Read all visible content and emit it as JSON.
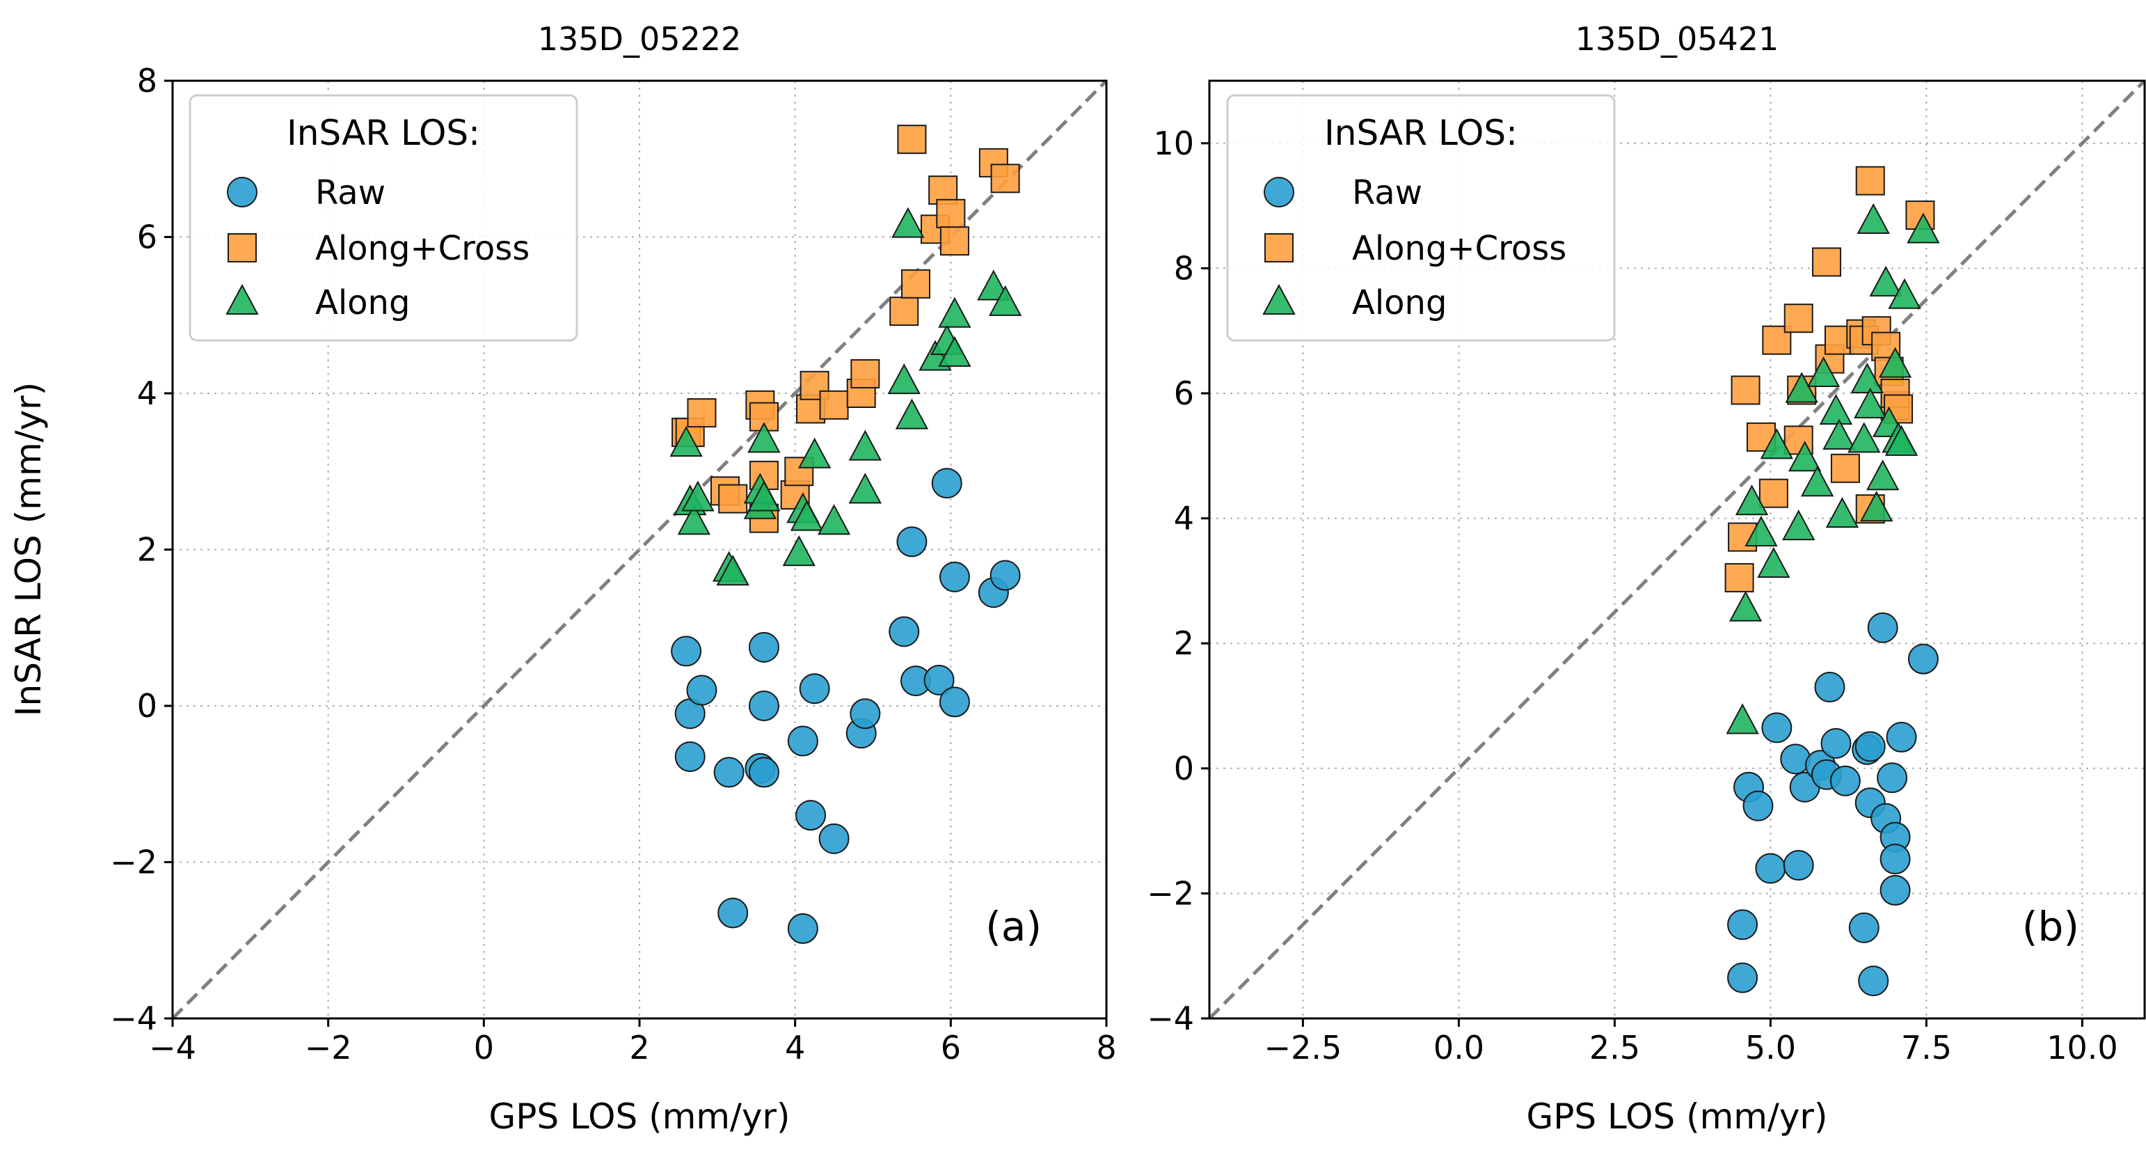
{
  "chart_data": [
    {
      "type": "scatter",
      "title": "135D_05222",
      "panel_label": "(a)",
      "xlabel": "GPS LOS (mm/yr)",
      "ylabel": "InSAR LOS (mm/yr)",
      "xlim": [
        -4,
        8
      ],
      "ylim": [
        -4,
        8
      ],
      "xticks": [
        -4,
        -2,
        0,
        2,
        4,
        6,
        8
      ],
      "yticks": [
        -4,
        -2,
        0,
        2,
        4,
        6,
        8
      ],
      "xtick_labels": [
        "−4",
        "−2",
        "0",
        "2",
        "4",
        "6",
        "8"
      ],
      "ytick_labels": [
        "−4",
        "−2",
        "0",
        "2",
        "4",
        "6",
        "8"
      ],
      "grid": true,
      "reference_line": "1:1",
      "legend": {
        "title": "InSAR LOS:",
        "location": "upper-left"
      },
      "series": [
        {
          "name": "Raw",
          "marker": "circle",
          "color": "#2a9fd0",
          "x": [
            2.6,
            2.65,
            2.65,
            2.8,
            3.15,
            3.2,
            3.55,
            3.6,
            3.6,
            3.6,
            4.1,
            4.1,
            4.2,
            4.25,
            4.5,
            4.85,
            4.9,
            5.4,
            5.5,
            5.55,
            5.85,
            5.95,
            6.05,
            6.05,
            6.55,
            6.7
          ],
          "y": [
            0.7,
            -0.1,
            -0.65,
            0.2,
            -0.85,
            -2.65,
            -0.8,
            -0.85,
            0.0,
            0.75,
            -0.45,
            -2.85,
            -1.4,
            0.22,
            -1.7,
            -0.35,
            -0.1,
            0.95,
            2.1,
            0.32,
            0.33,
            2.85,
            1.65,
            0.05,
            1.45,
            1.67
          ]
        },
        {
          "name": "Along+Cross",
          "marker": "square",
          "color": "#ffa040",
          "x": [
            2.6,
            2.65,
            2.8,
            3.1,
            3.2,
            3.55,
            3.6,
            3.6,
            3.6,
            4.0,
            4.05,
            4.2,
            4.25,
            4.5,
            4.85,
            4.9,
            5.4,
            5.5,
            5.55,
            5.8,
            5.9,
            6.0,
            6.05,
            6.55,
            6.7
          ],
          "y": [
            3.5,
            3.5,
            3.75,
            2.75,
            2.65,
            3.85,
            2.4,
            2.95,
            3.7,
            2.7,
            3.0,
            3.8,
            4.1,
            3.85,
            4.0,
            4.25,
            5.05,
            7.25,
            5.4,
            6.1,
            6.6,
            6.3,
            5.95,
            6.95,
            6.75
          ]
        },
        {
          "name": "Along",
          "marker": "triangle",
          "color": "#1fb55f",
          "x": [
            2.6,
            2.65,
            2.7,
            2.75,
            3.15,
            3.2,
            3.55,
            3.55,
            3.6,
            3.6,
            4.05,
            4.1,
            4.15,
            4.25,
            4.5,
            4.9,
            4.9,
            5.4,
            5.45,
            5.5,
            5.8,
            5.95,
            6.05,
            6.05,
            6.55,
            6.7
          ],
          "y": [
            3.35,
            2.6,
            2.35,
            2.65,
            1.75,
            1.7,
            2.55,
            2.75,
            2.65,
            3.4,
            1.95,
            2.5,
            2.4,
            3.2,
            2.35,
            3.3,
            2.75,
            4.15,
            6.15,
            3.7,
            4.45,
            4.65,
            5.0,
            4.5,
            5.35,
            5.15
          ]
        }
      ]
    },
    {
      "type": "scatter",
      "title": "135D_05421",
      "panel_label": "(b)",
      "xlabel": "GPS LOS (mm/yr)",
      "ylabel": "",
      "xlim": [
        -4,
        11
      ],
      "ylim": [
        -4,
        11
      ],
      "xticks": [
        -2.5,
        0,
        2.5,
        5,
        7.5,
        10
      ],
      "yticks": [
        -4,
        -2,
        0,
        2,
        4,
        6,
        8,
        10
      ],
      "xtick_labels": [
        "−2.5",
        "0.0",
        "2.5",
        "5.0",
        "7.5",
        "10.0"
      ],
      "ytick_labels": [
        "−4",
        "−2",
        "0",
        "2",
        "4",
        "6",
        "8",
        "10"
      ],
      "grid": true,
      "reference_line": "1:1",
      "legend": {
        "title": "InSAR LOS:",
        "location": "upper-left"
      },
      "series": [
        {
          "name": "Raw",
          "marker": "circle",
          "color": "#2a9fd0",
          "x": [
            4.55,
            4.55,
            4.65,
            4.8,
            5.0,
            5.1,
            5.4,
            5.45,
            5.55,
            5.8,
            5.9,
            5.95,
            6.05,
            6.2,
            6.5,
            6.55,
            6.6,
            6.6,
            6.65,
            6.8,
            6.85,
            6.95,
            7.0,
            7.0,
            7.0,
            7.1,
            7.45
          ],
          "y": [
            -2.5,
            -3.35,
            -0.3,
            -0.6,
            -1.6,
            0.65,
            0.15,
            -1.55,
            -0.3,
            0.05,
            -0.1,
            1.3,
            0.4,
            -0.2,
            -2.55,
            0.3,
            0.35,
            -0.55,
            -3.4,
            2.25,
            -0.8,
            -0.15,
            -1.1,
            -1.45,
            -1.95,
            0.5,
            1.75
          ]
        },
        {
          "name": "Along+Cross",
          "marker": "square",
          "color": "#ffa040",
          "x": [
            4.5,
            4.55,
            4.6,
            4.85,
            5.05,
            5.1,
            5.45,
            5.45,
            5.5,
            5.9,
            5.95,
            6.1,
            6.2,
            6.45,
            6.5,
            6.6,
            6.6,
            6.7,
            6.85,
            6.9,
            7.0,
            7.0,
            7.05,
            7.4
          ],
          "y": [
            3.05,
            3.7,
            6.05,
            5.3,
            4.4,
            6.85,
            7.2,
            5.25,
            6.05,
            8.1,
            6.55,
            6.85,
            4.8,
            6.95,
            6.85,
            4.15,
            9.4,
            7.0,
            6.75,
            6.35,
            5.8,
            6.0,
            5.75,
            8.85
          ]
        },
        {
          "name": "Along",
          "marker": "triangle",
          "color": "#1fb55f",
          "x": [
            4.55,
            4.6,
            4.7,
            4.85,
            5.05,
            5.1,
            5.45,
            5.5,
            5.55,
            5.75,
            5.85,
            6.05,
            6.1,
            6.15,
            6.5,
            6.55,
            6.6,
            6.65,
            6.7,
            6.8,
            6.85,
            6.9,
            7.0,
            7.05,
            7.1,
            7.15,
            7.45
          ],
          "y": [
            0.75,
            2.55,
            4.25,
            3.75,
            3.25,
            5.15,
            3.85,
            6.05,
            4.95,
            4.55,
            6.3,
            5.7,
            5.3,
            4.05,
            5.25,
            6.2,
            5.8,
            8.75,
            4.15,
            4.65,
            7.75,
            5.5,
            6.45,
            5.25,
            5.2,
            7.55,
            8.6
          ]
        }
      ]
    }
  ]
}
